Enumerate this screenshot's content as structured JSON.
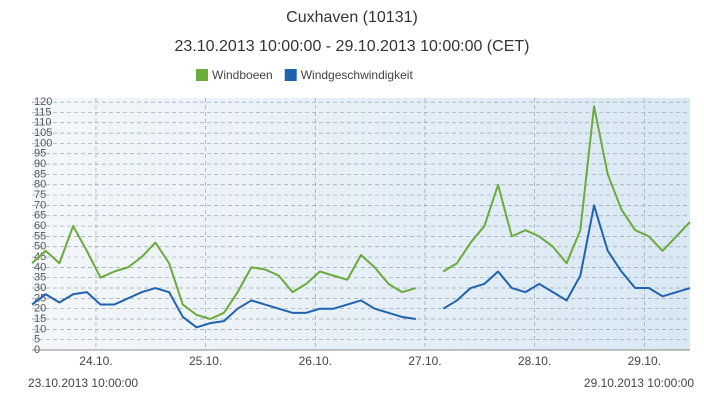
{
  "chart_data": {
    "type": "line",
    "title": "Cuxhaven (10131)",
    "subtitle": "23.10.2013 10:00:00 - 29.10.2013 10:00:00 (CET)",
    "x": [
      0,
      3,
      6,
      9,
      12,
      15,
      18,
      21,
      24,
      27,
      30,
      33,
      36,
      39,
      42,
      45,
      48,
      51,
      54,
      57,
      60,
      63,
      66,
      69,
      72,
      75,
      78,
      81,
      84,
      87,
      90,
      93,
      96,
      99,
      102,
      105,
      108,
      111,
      114,
      117,
      120,
      123,
      126,
      129,
      132,
      135,
      138,
      141,
      144
    ],
    "series": [
      {
        "name": "Windboeen",
        "color": "#6aab3c",
        "values": [
          42,
          48,
          42,
          60,
          48,
          35,
          38,
          40,
          45,
          52,
          42,
          22,
          17,
          15,
          18,
          28,
          40,
          39,
          36,
          28,
          32,
          38,
          36,
          34,
          46,
          40,
          32,
          28,
          30,
          null,
          38,
          42,
          52,
          60,
          80,
          55,
          58,
          55,
          50,
          42,
          58,
          118,
          85,
          68,
          58,
          55,
          48,
          55,
          62
        ]
      },
      {
        "name": "Windgeschwindigkeit",
        "color": "#1f62b0",
        "values": [
          22,
          27,
          23,
          27,
          28,
          22,
          22,
          25,
          28,
          30,
          28,
          16,
          11,
          13,
          14,
          20,
          24,
          22,
          20,
          18,
          18,
          20,
          20,
          22,
          24,
          20,
          18,
          16,
          15,
          null,
          20,
          24,
          30,
          32,
          38,
          30,
          28,
          32,
          28,
          24,
          36,
          70,
          48,
          38,
          30,
          30,
          26,
          28,
          30
        ]
      }
    ],
    "xlim": [
      0,
      144
    ],
    "xticks": [
      {
        "value": 14,
        "label": "24.10."
      },
      {
        "value": 38,
        "label": "25.10."
      },
      {
        "value": 62,
        "label": "26.10."
      },
      {
        "value": 86,
        "label": "27.10."
      },
      {
        "value": 110,
        "label": "28.10."
      },
      {
        "value": 134,
        "label": "29.10."
      }
    ],
    "ylim": [
      0,
      122
    ],
    "yticks": [
      0,
      5,
      10,
      15,
      20,
      25,
      30,
      35,
      40,
      45,
      50,
      55,
      60,
      65,
      70,
      75,
      80,
      85,
      90,
      95,
      100,
      105,
      110,
      115,
      120
    ],
    "start_label": "23.10.2013 10:00:00",
    "end_label": "29.10.2013 10:00:00",
    "grid": true,
    "legend": "top"
  }
}
